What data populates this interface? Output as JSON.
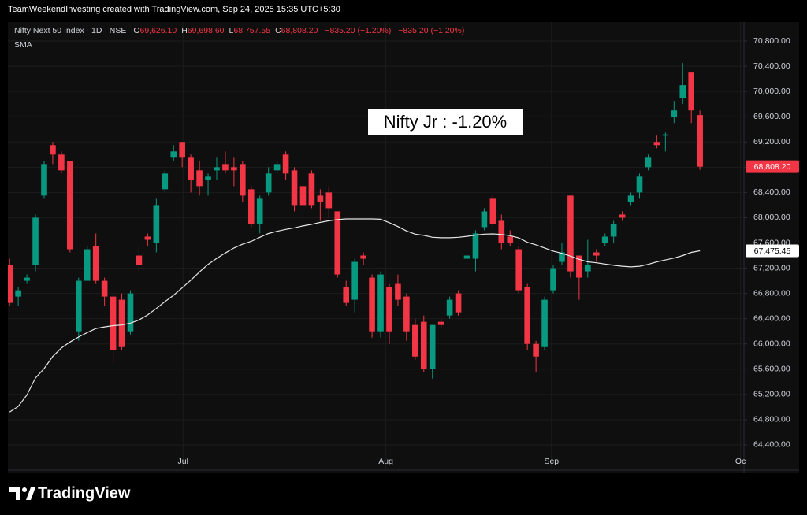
{
  "chart_data": {
    "type": "candlestick",
    "header": "TeamWeekendInvesting created with TradingView.com, Sep 24, 2025 15:35 UTC+5:30",
    "title": "Nifty Next 50 Index · 1D · NSE",
    "legend_items": [
      {
        "key": "O",
        "text": "69,626.10"
      },
      {
        "key": "H",
        "text": "69,698.60"
      },
      {
        "key": "L",
        "text": "68,757.55"
      },
      {
        "key": "C",
        "text": "68,808.20"
      }
    ],
    "change_texts": [
      "−835.20 (−1.20%)",
      "−835.20 (−1.20%)"
    ],
    "annotation": "Nifty Jr : -1.20%",
    "watermark": "TradingView",
    "up_color": "#089981",
    "down_color": "#f23645",
    "open": [
      67250,
      66750,
      67000,
      67250,
      68350,
      69150,
      69000,
      68900,
      66200,
      67000,
      67550,
      67000,
      66750,
      66700,
      66200,
      67400,
      67700,
      67600,
      68450,
      68950,
      69200,
      68950,
      68750,
      68600,
      68750,
      68850,
      68800,
      68850,
      68450,
      67900,
      68400,
      68750,
      69000,
      68750,
      68500,
      68700,
      68350,
      68400,
      68100,
      66900,
      66700,
      67400,
      67050,
      66200,
      66900,
      66950,
      66750,
      66300,
      66350,
      65600,
      66350,
      66450,
      66800,
      67350,
      67350,
      67850,
      68300,
      67950,
      67700,
      67500,
      66900,
      66000,
      65950,
      66850,
      67300,
      68350,
      67400,
      67150,
      67450,
      67600,
      67700,
      68050,
      68250,
      68400,
      68800,
      69200,
      69300,
      69600,
      69900,
      70300,
      69626.1
    ],
    "high": [
      67350,
      66900,
      67100,
      68050,
      68900,
      69200,
      69050,
      68900,
      67050,
      67550,
      67750,
      67050,
      66800,
      66800,
      66850,
      67550,
      67750,
      68300,
      68750,
      69150,
      69200,
      69000,
      68900,
      68700,
      68950,
      69050,
      68950,
      68900,
      68500,
      68350,
      68800,
      68900,
      69050,
      68800,
      68550,
      68750,
      68450,
      68500,
      68100,
      67000,
      67350,
      67450,
      67100,
      67150,
      66950,
      67100,
      66800,
      66400,
      66450,
      66300,
      66400,
      66750,
      66850,
      67650,
      67800,
      68150,
      68350,
      68050,
      67800,
      67550,
      66950,
      66050,
      66750,
      67250,
      67600,
      68350,
      67400,
      67650,
      67500,
      67750,
      67950,
      68100,
      68400,
      68700,
      69000,
      69300,
      69350,
      69850,
      70450,
      70300,
      69698.6
    ],
    "low": [
      66600,
      66600,
      66950,
      67150,
      68300,
      68850,
      68700,
      67450,
      66050,
      67000,
      66950,
      66600,
      65700,
      65900,
      66150,
      67150,
      67550,
      67450,
      68400,
      68900,
      68800,
      68400,
      68350,
      68350,
      68600,
      68700,
      68500,
      68250,
      67850,
      67750,
      68350,
      68700,
      68600,
      68100,
      67900,
      68150,
      67950,
      68000,
      67050,
      66600,
      66500,
      67250,
      66100,
      66100,
      66000,
      66600,
      66050,
      65750,
      65550,
      65450,
      66250,
      66400,
      66450,
      67250,
      67150,
      67800,
      67850,
      67500,
      67550,
      66800,
      65900,
      65550,
      65900,
      66800,
      67250,
      67050,
      66700,
      67050,
      67300,
      67550,
      67600,
      67950,
      68200,
      68300,
      68750,
      69100,
      69050,
      69500,
      69800,
      69500,
      68757.55
    ],
    "close": [
      66650,
      66850,
      67050,
      68000,
      68850,
      69000,
      68750,
      67500,
      67000,
      67500,
      67000,
      66750,
      65900,
      65950,
      66800,
      67250,
      67650,
      68200,
      68700,
      69050,
      68950,
      68600,
      68500,
      68650,
      68800,
      68750,
      68750,
      68350,
      67900,
      68300,
      68700,
      68850,
      68700,
      68200,
      68200,
      68200,
      68250,
      68150,
      67100,
      66650,
      67300,
      67350,
      66200,
      67100,
      66200,
      66700,
      66200,
      65800,
      65600,
      66300,
      66300,
      66700,
      66500,
      67400,
      67750,
      68100,
      67900,
      67600,
      67600,
      66850,
      66000,
      65800,
      66700,
      67200,
      67450,
      67150,
      67050,
      67250,
      67400,
      67700,
      67900,
      68000,
      68350,
      68650,
      68950,
      69150,
      69320,
      69700,
      70100,
      69700,
      68808.2
    ],
    "overlays": [
      {
        "name": "SMA",
        "color": "#e6e6e6",
        "values": [
          64920,
          65010,
          65190,
          65460,
          65610,
          65800,
          65935,
          66030,
          66110,
          66180,
          66245,
          66270,
          66290,
          66300,
          66330,
          66380,
          66460,
          66560,
          66670,
          66770,
          66890,
          67010,
          67140,
          67260,
          67355,
          67440,
          67520,
          67580,
          67625,
          67690,
          67750,
          67785,
          67815,
          67840,
          67870,
          67895,
          67925,
          67950,
          67970,
          67981,
          67981,
          67981,
          67981,
          67975,
          67920,
          67860,
          67790,
          67740,
          67720,
          67690,
          67682,
          67682,
          67690,
          67705,
          67725,
          67740,
          67744,
          67735,
          67715,
          67680,
          67610,
          67570,
          67520,
          67470,
          67435,
          67390,
          67340,
          67300,
          67285,
          67265,
          67245,
          67230,
          67220,
          67230,
          67260,
          67300,
          67330,
          67360,
          67400,
          67450,
          67475.45
        ]
      }
    ],
    "price_labels": [
      {
        "value": 68808.2,
        "label": "68,808.20",
        "color": "#f23645",
        "text_color": "#ffffff"
      },
      {
        "value": 67475.45,
        "label": "67,475.45",
        "color": "#ffffff",
        "text_color": "#000000"
      }
    ],
    "xlim": [
      -0.2,
      85.1
    ],
    "xticks": [
      {
        "value": 20.1,
        "label": "Jul"
      },
      {
        "value": 43.6,
        "label": "Aug"
      },
      {
        "value": 62.8,
        "label": "Sep"
      },
      {
        "value": 84.7,
        "label": "Oc"
      }
    ],
    "ylim": [
      64000,
      71100
    ],
    "yticks": [
      {
        "value": 64400,
        "label": "64,400.00"
      },
      {
        "value": 64800,
        "label": "64,800.00"
      },
      {
        "value": 65200,
        "label": "65,200.00"
      },
      {
        "value": 65600,
        "label": "65,600.00"
      },
      {
        "value": 66000,
        "label": "66,000.00"
      },
      {
        "value": 66400,
        "label": "66,400.00"
      },
      {
        "value": 66800,
        "label": "66,800.00"
      },
      {
        "value": 67200,
        "label": "67,200.00"
      },
      {
        "value": 67600,
        "label": "67,600.00"
      },
      {
        "value": 68000,
        "label": "68,000.00"
      },
      {
        "value": 68400,
        "label": "68,400.00"
      },
      {
        "value": 68800,
        "label": "68,800.00"
      },
      {
        "value": 69200,
        "label": "69,200.00"
      },
      {
        "value": 69600,
        "label": "69,600.00"
      },
      {
        "value": 70000,
        "label": "70,000.00"
      },
      {
        "value": 70400,
        "label": "70,400.00"
      },
      {
        "value": 70800,
        "label": "70,800.00"
      }
    ],
    "grid": true
  }
}
